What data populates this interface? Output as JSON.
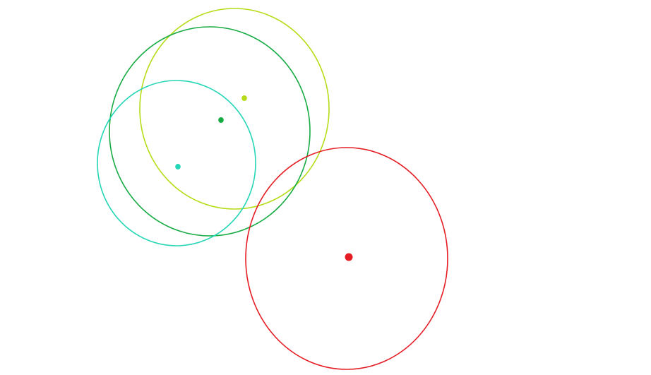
{
  "circles": [
    {
      "id": "lime",
      "color": "#b5dc17"
    },
    {
      "id": "green",
      "color": "#16ab43"
    },
    {
      "id": "teal",
      "color": "#26d6b6"
    },
    {
      "id": "red",
      "color": "#e51c23"
    }
  ]
}
